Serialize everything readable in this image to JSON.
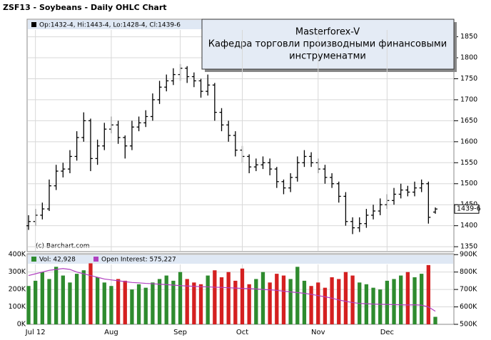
{
  "chart_data": [
    {
      "type": "ohlc",
      "title": "ZSF13 - Soybeans - Daily OHLC Chart",
      "legend": "Op:1432-4, Hi:1443-4, Lo:1428-4, Cl:1439-6",
      "credit": "(c) Barchart.com",
      "annotation": {
        "title": "Masterforex-V",
        "lines": [
          "Кафедра торговли производными финансовыми",
          "инструменатми"
        ]
      },
      "color": "#000000",
      "grid": true,
      "open": [
        1400,
        1410,
        1425,
        1440,
        1495,
        1530,
        1535,
        1565,
        1610,
        1650,
        1560,
        1590,
        1630,
        1640,
        1610,
        1590,
        1635,
        1645,
        1660,
        1700,
        1730,
        1745,
        1760,
        1775,
        1755,
        1745,
        1720,
        1735,
        1670,
        1640,
        1615,
        1580,
        1565,
        1540,
        1545,
        1550,
        1535,
        1505,
        1490,
        1515,
        1550,
        1565,
        1550,
        1535,
        1515,
        1500,
        1470,
        1410,
        1395,
        1405,
        1425,
        1435,
        1450,
        1460,
        1475,
        1485,
        1480,
        1490,
        1500,
        1432.5
      ],
      "high": [
        1425,
        1440,
        1455,
        1510,
        1545,
        1550,
        1580,
        1625,
        1670,
        1655,
        1605,
        1645,
        1660,
        1650,
        1615,
        1650,
        1660,
        1675,
        1715,
        1745,
        1760,
        1775,
        1785,
        1780,
        1765,
        1750,
        1760,
        1740,
        1680,
        1650,
        1625,
        1590,
        1570,
        1560,
        1565,
        1560,
        1540,
        1510,
        1525,
        1565,
        1580,
        1575,
        1560,
        1545,
        1525,
        1505,
        1480,
        1420,
        1420,
        1440,
        1450,
        1465,
        1475,
        1490,
        1500,
        1495,
        1505,
        1510,
        1505,
        1443.5
      ],
      "low": [
        1390,
        1400,
        1415,
        1435,
        1485,
        1515,
        1525,
        1555,
        1600,
        1530,
        1545,
        1580,
        1620,
        1595,
        1560,
        1580,
        1625,
        1635,
        1650,
        1690,
        1720,
        1735,
        1745,
        1740,
        1730,
        1705,
        1710,
        1650,
        1625,
        1600,
        1565,
        1550,
        1525,
        1530,
        1535,
        1520,
        1490,
        1475,
        1480,
        1505,
        1540,
        1540,
        1525,
        1500,
        1490,
        1455,
        1400,
        1380,
        1385,
        1395,
        1415,
        1425,
        1440,
        1450,
        1465,
        1470,
        1470,
        1480,
        1405,
        1428.5
      ],
      "close": [
        1410,
        1425,
        1440,
        1495,
        1530,
        1535,
        1565,
        1610,
        1650,
        1560,
        1590,
        1630,
        1640,
        1610,
        1590,
        1635,
        1645,
        1660,
        1700,
        1730,
        1745,
        1760,
        1775,
        1755,
        1745,
        1720,
        1735,
        1670,
        1640,
        1615,
        1580,
        1565,
        1540,
        1545,
        1550,
        1535,
        1505,
        1490,
        1515,
        1550,
        1565,
        1550,
        1535,
        1515,
        1500,
        1470,
        1410,
        1395,
        1405,
        1425,
        1435,
        1450,
        1460,
        1475,
        1485,
        1480,
        1490,
        1500,
        1420,
        1439.75
      ],
      "last_label": {
        "value": 1439.75,
        "label": "1439-6"
      },
      "ylim": [
        1340,
        1890
      ],
      "yticks": [
        1350,
        1400,
        1450,
        1500,
        1550,
        1600,
        1650,
        1700,
        1750,
        1800,
        1850
      ]
    },
    {
      "type": "bar",
      "categories": [
        null,
        "Jul 12",
        null,
        null,
        null,
        null,
        null,
        null,
        null,
        null,
        null,
        null,
        "Aug",
        null,
        null,
        null,
        null,
        null,
        null,
        null,
        null,
        null,
        "Sep",
        null,
        null,
        null,
        null,
        null,
        null,
        null,
        null,
        "Oct",
        null,
        null,
        null,
        null,
        null,
        null,
        null,
        null,
        null,
        null,
        "Nov",
        null,
        null,
        null,
        null,
        null,
        null,
        null,
        null,
        null,
        "Dec",
        null,
        null,
        null,
        null,
        null,
        null,
        null
      ],
      "series": [
        {
          "name": "Vol: 42,928",
          "color": "#2e8b2e",
          "down_color": "#d42020",
          "values": [
            220000,
            250000,
            300000,
            260000,
            330000,
            280000,
            240000,
            290000,
            310000,
            350000,
            270000,
            240000,
            220000,
            260000,
            250000,
            200000,
            230000,
            210000,
            240000,
            260000,
            280000,
            250000,
            300000,
            260000,
            240000,
            230000,
            280000,
            310000,
            270000,
            300000,
            250000,
            320000,
            230000,
            260000,
            300000,
            240000,
            290000,
            280000,
            260000,
            330000,
            250000,
            220000,
            240000,
            210000,
            270000,
            260000,
            300000,
            280000,
            240000,
            230000,
            210000,
            200000,
            250000,
            260000,
            280000,
            300000,
            270000,
            290000,
            340000,
            42928
          ]
        },
        {
          "name": "Open Interest: 575,227",
          "color": "#b040c0",
          "axis": "y2",
          "values": [
            780000,
            790000,
            800000,
            810000,
            815000,
            820000,
            815000,
            800000,
            790000,
            780000,
            770000,
            760000,
            755000,
            750000,
            745000,
            740000,
            738000,
            735000,
            733000,
            730000,
            728000,
            725000,
            722000,
            720000,
            718000,
            716000,
            715000,
            713000,
            712000,
            710000,
            708000,
            706000,
            705000,
            703000,
            700000,
            698000,
            695000,
            690000,
            686000,
            682000,
            678000,
            672000,
            665000,
            658000,
            650000,
            640000,
            632000,
            625000,
            620000,
            618000,
            616000,
            615000,
            614000,
            613000,
            612000,
            611000,
            612000,
            610000,
            600000,
            575227
          ]
        }
      ],
      "ylim": [
        0,
        405000
      ],
      "yticks": [
        {
          "value": 0,
          "label": "0K"
        },
        {
          "value": 100000,
          "label": "100K"
        },
        {
          "value": 200000,
          "label": "200K"
        },
        {
          "value": 300000,
          "label": "300K"
        },
        {
          "value": 400000,
          "label": "400K"
        }
      ],
      "y2lim": [
        500000,
        905000
      ],
      "y2ticks": [
        {
          "value": 500000,
          "label": "500K"
        },
        {
          "value": 600000,
          "label": "600K"
        },
        {
          "value": 700000,
          "label": "700K"
        },
        {
          "value": 800000,
          "label": "800K"
        },
        {
          "value": 900000,
          "label": "900K"
        }
      ],
      "grid": true
    }
  ]
}
